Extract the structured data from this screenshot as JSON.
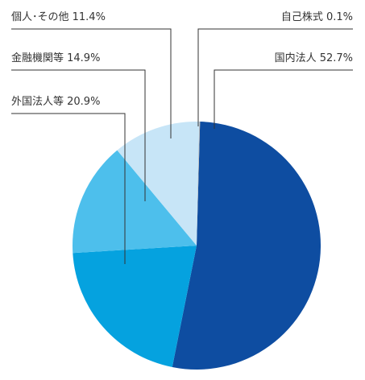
{
  "chart_data": {
    "type": "pie",
    "title": "",
    "legend": "none",
    "slices": [
      {
        "label": "国内法人",
        "value": 52.7,
        "display": "国内法人 52.7%",
        "color": "#0e4da1"
      },
      {
        "label": "外国法人等",
        "value": 20.9,
        "display": "外国法人等 20.9%",
        "color": "#05a2df"
      },
      {
        "label": "金融機関等",
        "value": 14.9,
        "display": "金融機関等 14.9%",
        "color": "#4dbfec"
      },
      {
        "label": "個人・その他",
        "value": 11.4,
        "display": "個人･その他 11.4%",
        "color": "#c7e5f7"
      },
      {
        "label": "自己株式",
        "value": 0.1,
        "display": "自己株式 0.1%",
        "color": "#b3b3b3"
      }
    ]
  }
}
